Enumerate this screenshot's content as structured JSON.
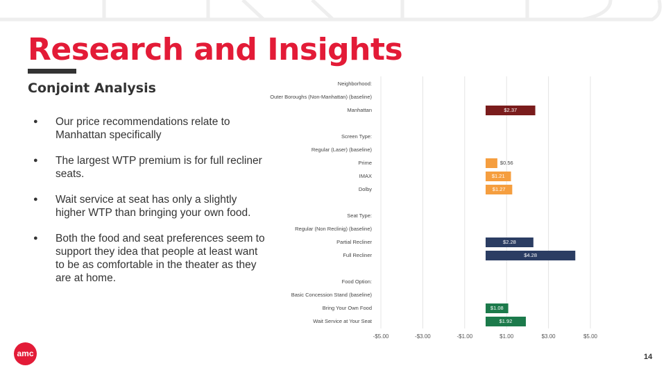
{
  "header": {
    "title": "Research and Insights",
    "subtitle": "Conjoint Analysis"
  },
  "bullets": [
    "Our price recommendations relate to Manhattan specifically",
    "The largest WTP premium is for full recliner seats.",
    "Wait service at seat has only a slightly higher WTP than bringing your own food.",
    "Both the food and seat preferences seem to support they idea that people at least want to be as comfortable in the theater as they are at home."
  ],
  "logo": "amc",
  "page_number": "14",
  "chart_data": {
    "type": "bar",
    "orientation": "horizontal",
    "categories": [
      "Neighborhood:",
      "Outer Boroughs (Non-Manhattan) (baseline)",
      "Manhattan",
      null,
      "Screen Type:",
      "Regular (Laser) (baseline)",
      "Prime",
      "IMAX",
      "Dolby",
      null,
      "Seat Type:",
      "Regular (Non Reclinig) (baseline)",
      "Partial Recliner",
      "Full Recliner",
      null,
      "Food Option:",
      "Basic Concession Stand (baseline)",
      "Bring Your Own Food",
      "Wait Service at Your Seat"
    ],
    "values": [
      null,
      null,
      2.37,
      null,
      null,
      null,
      0.56,
      1.21,
      1.27,
      null,
      null,
      null,
      2.28,
      4.28,
      null,
      null,
      null,
      1.08,
      1.92
    ],
    "value_labels": [
      null,
      null,
      "$2.37",
      null,
      null,
      null,
      "$0.56",
      "$1.21",
      "$1.27",
      null,
      null,
      null,
      "$2.28",
      "$4.28",
      null,
      null,
      null,
      "$1.08",
      "$1.92"
    ],
    "colors": [
      null,
      null,
      "#7a1c1c",
      null,
      null,
      null,
      "#f59e3f",
      "#f59e3f",
      "#f59e3f",
      null,
      null,
      null,
      "#2b3d63",
      "#2b3d63",
      null,
      null,
      null,
      "#1c7a4b",
      "#1c7a4b"
    ],
    "xlim": [
      -5,
      5
    ],
    "xticks": [
      {
        "value": -5,
        "label": "-$5.00"
      },
      {
        "value": -3,
        "label": "-$3.00"
      },
      {
        "value": -1,
        "label": "-$1.00"
      },
      {
        "value": 1,
        "label": "$1.00"
      },
      {
        "value": 3,
        "label": "$3.00"
      },
      {
        "value": 5,
        "label": "$5.00"
      }
    ],
    "grid": true
  }
}
